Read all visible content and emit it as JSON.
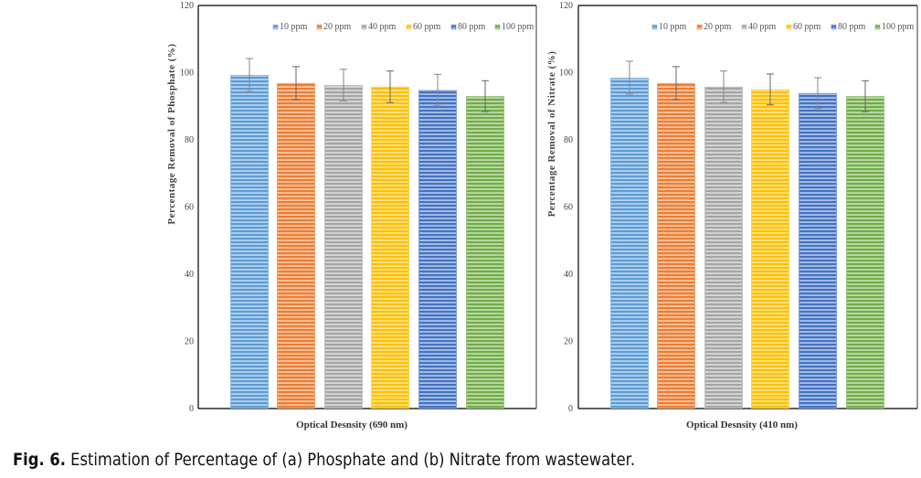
{
  "figure": {
    "caption_label": "Fig. 6.",
    "caption_text": "Estimation of Percentage of (a) Phosphate and (b) Nitrate from wastewater."
  },
  "chart_data": [
    {
      "id": "a",
      "type": "bar",
      "title": "",
      "xlabel": "Optical Desnsity (690 nm)",
      "ylabel": "Percentage Removal of Phosphate (%)",
      "ylim": [
        0,
        120
      ],
      "yticks": [
        0,
        20,
        40,
        60,
        80,
        100,
        120
      ],
      "grid": false,
      "legend_position": "top-right",
      "categories": [
        "Optical Desnsity (690 nm)"
      ],
      "series": [
        {
          "name": "10 ppm",
          "color": "#5b9bd5",
          "values": [
            99.3
          ],
          "error": [
            4.9
          ]
        },
        {
          "name": "20 ppm",
          "color": "#ed7d31",
          "values": [
            96.9
          ],
          "error": [
            4.9
          ]
        },
        {
          "name": "40 ppm",
          "color": "#a5a5a5",
          "values": [
            96.3
          ],
          "error": [
            4.7
          ]
        },
        {
          "name": "60 ppm",
          "color": "#ffc000",
          "values": [
            95.8
          ],
          "error": [
            4.7
          ]
        },
        {
          "name": "80 ppm",
          "color": "#4472c4",
          "values": [
            94.8
          ],
          "error": [
            4.7
          ]
        },
        {
          "name": "100 ppm",
          "color": "#70ad47",
          "values": [
            93.0
          ],
          "error": [
            4.6
          ]
        }
      ]
    },
    {
      "id": "b",
      "type": "bar",
      "title": "",
      "xlabel": "Optical Desnsity (410 nm)",
      "ylabel": "Percentage Removal of Nitrate (%)",
      "ylim": [
        0,
        120
      ],
      "yticks": [
        0,
        20,
        40,
        60,
        80,
        100,
        120
      ],
      "grid": false,
      "legend_position": "top-right",
      "categories": [
        "Optical Desnsity (410 nm)"
      ],
      "series": [
        {
          "name": "10 ppm",
          "color": "#5b9bd5",
          "values": [
            98.5
          ],
          "error": [
            4.9
          ]
        },
        {
          "name": "20 ppm",
          "color": "#ed7d31",
          "values": [
            96.9
          ],
          "error": [
            4.9
          ]
        },
        {
          "name": "40 ppm",
          "color": "#a5a5a5",
          "values": [
            95.8
          ],
          "error": [
            4.7
          ]
        },
        {
          "name": "60 ppm",
          "color": "#ffc000",
          "values": [
            95.0
          ],
          "error": [
            4.6
          ]
        },
        {
          "name": "80 ppm",
          "color": "#4472c4",
          "values": [
            93.9
          ],
          "error": [
            4.6
          ]
        },
        {
          "name": "100 ppm",
          "color": "#70ad47",
          "values": [
            93.0
          ],
          "error": [
            4.6
          ]
        }
      ]
    }
  ]
}
